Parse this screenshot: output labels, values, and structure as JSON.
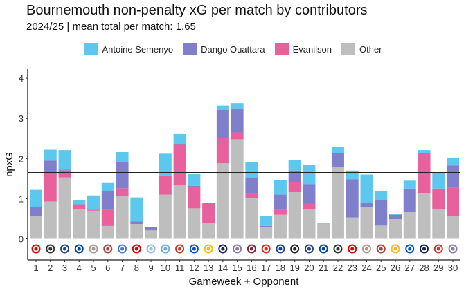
{
  "chart_data": {
    "type": "bar",
    "stacked": true,
    "title": "Bournemouth non-penalty xG per match by contributors",
    "subtitle": "2024/25 | mean total per match: 1.65",
    "xlabel": "Gameweek + Opponent",
    "ylabel": "npxG",
    "ylim": [
      0,
      4.2
    ],
    "yticks": [
      0,
      1,
      2,
      3,
      4
    ],
    "grid": false,
    "legend_position": "top",
    "reference_line": {
      "value": 1.65,
      "label": "mean total per match"
    },
    "categories": [
      "1",
      "2",
      "3",
      "4",
      "5",
      "6",
      "7",
      "8",
      "9",
      "10",
      "11",
      "12",
      "13",
      "14",
      "15",
      "16",
      "17",
      "18",
      "19",
      "20",
      "21",
      "22",
      "23",
      "24",
      "25",
      "26",
      "27",
      "28",
      "29",
      "30"
    ],
    "opponent_logos": [
      "nottingham-forest",
      "newcastle",
      "everton",
      "chelsea",
      "liverpool",
      "southampton",
      "leicester",
      "arsenal",
      "aston-villa",
      "manchester-city",
      "brentford",
      "brighton",
      "wolves",
      "tottenham",
      "ipswich",
      "west-ham",
      "manchester-united",
      "crystal-palace",
      "fulham",
      "everton",
      "chelsea",
      "newcastle",
      "nottingham-forest",
      "liverpool",
      "southampton",
      "wolves",
      "brighton",
      "tottenham",
      "brentford",
      "ipswich"
    ],
    "series": [
      {
        "name": "Other",
        "color": "#BEBEBE",
        "values": [
          0.57,
          0.93,
          1.53,
          0.74,
          0.7,
          0.32,
          1.07,
          0.37,
          0.21,
          1.1,
          1.33,
          0.76,
          0.4,
          1.88,
          2.48,
          1.02,
          0.3,
          0.6,
          1.16,
          0.74,
          0.38,
          1.79,
          0.53,
          0.8,
          0.33,
          0.49,
          0.68,
          1.14,
          0.74,
          0.56
        ]
      },
      {
        "name": "Evanilson",
        "color": "#E8609C",
        "values": [
          0,
          0.71,
          0.17,
          0.12,
          0.02,
          0.41,
          0.19,
          0,
          0,
          0.46,
          1.01,
          0.53,
          0.5,
          0.63,
          0.17,
          0.11,
          0,
          0.12,
          0.26,
          0.13,
          0,
          0,
          0,
          0,
          0,
          0,
          0,
          0.97,
          0.49,
          0.71
        ]
      },
      {
        "name": "Dango Ouattara",
        "color": "#7F7FCB",
        "values": [
          0.22,
          0.31,
          0.02,
          0,
          0.01,
          0.45,
          0.65,
          0.06,
          0.08,
          0.02,
          0.02,
          0.03,
          0,
          0.7,
          0.6,
          0.4,
          0.02,
          0.38,
          0.28,
          0.49,
          0,
          0.35,
          0.95,
          0.1,
          0.64,
          0.11,
          0.57,
          0.02,
          0.02,
          0.56
        ]
      },
      {
        "name": "Antoine Semenyo",
        "color": "#5CC8EE",
        "values": [
          0.43,
          0.27,
          0.49,
          0.1,
          0.35,
          0.21,
          0.25,
          0.6,
          0,
          0.54,
          0.25,
          0.29,
          0,
          0.11,
          0.13,
          0.38,
          0.25,
          0.36,
          0.27,
          0.49,
          0.02,
          0.14,
          0.22,
          0.7,
          0.21,
          0.02,
          0.2,
          0.08,
          0.41,
          0.18
        ]
      }
    ]
  },
  "legend_order": [
    "Antoine Semenyo",
    "Dango Ouattara",
    "Evanilson",
    "Other"
  ],
  "logo_colors": {
    "nottingham-forest": "#DD0000",
    "newcastle": "#333333",
    "everton": "#274488",
    "chelsea": "#034694",
    "liverpool": "#A89A8A",
    "southampton": "#A6423A",
    "leicester": "#4A7BC0",
    "arsenal": "#DB0007",
    "aston-villa": "#95BFE5",
    "manchester-city": "#6CABDD",
    "brentford": "#C8362E",
    "brighton": "#0057B8",
    "wolves": "#FDB913",
    "tottenham": "#132257",
    "ipswich": "#8A7AAE",
    "west-ham": "#7A263A",
    "manchester-united": "#DA291C",
    "crystal-palace": "#1B458F",
    "fulham": "#222222"
  }
}
